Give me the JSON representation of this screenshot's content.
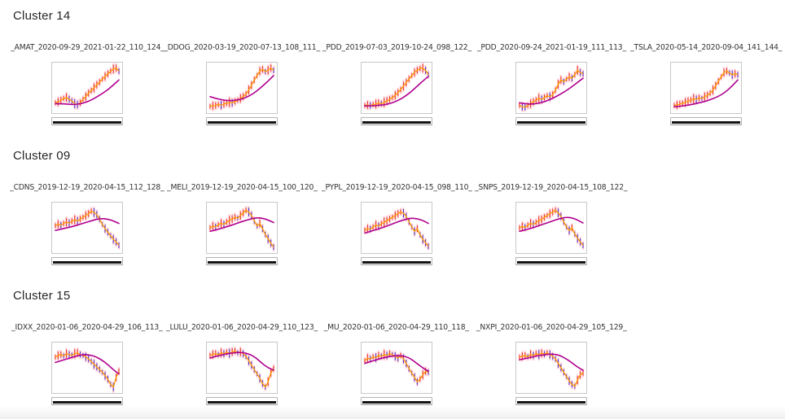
{
  "page": {
    "background": "#ffffff",
    "footer_band_color": "#f1f1f2"
  },
  "colors": {
    "chart_border": "#c8c8c8",
    "fast_line_orange": "#ff9c00",
    "slow_line_magenta": "#b0008f",
    "candle_up_red": "#e5352b",
    "candle_down_indigo": "#4f35cf",
    "candle_glow_pink": "#ff9fae",
    "slider_fill_black": "#141414",
    "slider_border": "#b5b5b5",
    "heading_text": "#262626",
    "label_text": "#333333"
  },
  "sections": [
    {
      "title": "Cluster 14",
      "charts": [
        {
          "label": "_AMAT_2020-09-29_2021-01-22_110_124_",
          "closes": [
            16,
            18,
            22,
            26,
            28,
            24,
            20,
            14,
            12,
            16,
            24,
            30,
            38,
            44,
            50,
            57,
            63,
            70,
            76,
            82,
            88,
            93,
            95,
            88
          ],
          "ma": [
            14,
            14,
            13,
            12,
            13,
            16,
            21,
            28,
            36,
            45,
            56,
            68
          ]
        },
        {
          "label": "_DDOG_2020-03-19_2020-07-13_108_111_",
          "closes": [
            8,
            9,
            10,
            12,
            11,
            13,
            15,
            17,
            16,
            19,
            22,
            26,
            30,
            36,
            45,
            56,
            68,
            78,
            88,
            92,
            87,
            90,
            95,
            90
          ],
          "ma": [
            30,
            26,
            23,
            21,
            21,
            23,
            27,
            33,
            42,
            53,
            65,
            78
          ]
        },
        {
          "label": "_PDD_2019-07-03_2019-10-24_098_122_",
          "closes": [
            10,
            11,
            10,
            12,
            13,
            15,
            14,
            17,
            20,
            24,
            28,
            33,
            39,
            46,
            54,
            62,
            70,
            78,
            85,
            90,
            94,
            95,
            90,
            80
          ],
          "ma": [
            9,
            9,
            10,
            11,
            13,
            17,
            23,
            31,
            41,
            53,
            65,
            76
          ]
        },
        {
          "label": "_PDD_2020-09-24_2021-01-19_111_113_",
          "closes": [
            10,
            7,
            6,
            10,
            14,
            18,
            22,
            26,
            24,
            28,
            32,
            30,
            34,
            45,
            58,
            68,
            64,
            70,
            75,
            72,
            80,
            90,
            85,
            82
          ],
          "ma": [
            16,
            14,
            13,
            14,
            17,
            22,
            28,
            35,
            43,
            52,
            62,
            72
          ]
        },
        {
          "label": "_TSLA_2020-05-14_2020-09-04_141_144_",
          "closes": [
            10,
            11,
            13,
            15,
            17,
            20,
            22,
            25,
            24,
            27,
            26,
            30,
            33,
            38,
            45,
            55,
            65,
            75,
            85,
            88,
            84,
            80,
            82,
            80
          ],
          "ma": [
            7,
            8,
            10,
            12,
            15,
            18,
            22,
            27,
            33,
            42,
            54,
            68
          ]
        }
      ]
    },
    {
      "title": "Cluster 09",
      "charts": [
        {
          "label": "_CDNS_2019-12-19_2020-04-15_112_128_",
          "closes": [
            55,
            58,
            56,
            60,
            63,
            61,
            65,
            68,
            66,
            70,
            74,
            78,
            82,
            88,
            85,
            80,
            70,
            58,
            48,
            40,
            32,
            24,
            18,
            10
          ],
          "ma": [
            44,
            47,
            50,
            53,
            57,
            61,
            65,
            69,
            71,
            70,
            66,
            60
          ]
        },
        {
          "label": "_MELI_2019-12-19_2020-04-15_100_120_",
          "closes": [
            50,
            54,
            52,
            57,
            60,
            58,
            63,
            67,
            70,
            74,
            72,
            78,
            84,
            90,
            86,
            78,
            66,
            54,
            60,
            48,
            35,
            25,
            15,
            6
          ],
          "ma": [
            42,
            45,
            49,
            53,
            57,
            62,
            66,
            70,
            73,
            72,
            68,
            62
          ]
        },
        {
          "label": "_PYPL_2019-12-19_2020-04-15_098_110_",
          "closes": [
            45,
            48,
            47,
            52,
            56,
            54,
            59,
            63,
            66,
            70,
            74,
            78,
            82,
            86,
            83,
            76,
            64,
            52,
            42,
            48,
            34,
            24,
            16,
            8
          ],
          "ma": [
            38,
            42,
            46,
            50,
            55,
            60,
            65,
            69,
            72,
            71,
            67,
            60
          ]
        },
        {
          "label": "_SNPS_2019-12-19_2020-04-15_108_122_",
          "closes": [
            50,
            53,
            51,
            56,
            60,
            58,
            62,
            66,
            69,
            74,
            78,
            82,
            86,
            90,
            84,
            76,
            64,
            52,
            44,
            50,
            36,
            26,
            18,
            10
          ],
          "ma": [
            42,
            45,
            49,
            53,
            58,
            62,
            67,
            71,
            74,
            73,
            68,
            61
          ]
        }
      ]
    },
    {
      "title": "Cluster 15",
      "charts": [
        {
          "label": "_IDXX_2020-01-06_2020-04-29_106_113_",
          "closes": [
            74,
            78,
            80,
            77,
            82,
            80,
            78,
            82,
            84,
            80,
            78,
            75,
            70,
            64,
            58,
            52,
            46,
            40,
            32,
            24,
            12,
            6,
            28,
            42
          ],
          "ma": [
            62,
            66,
            70,
            74,
            78,
            80,
            79,
            75,
            68,
            58,
            46,
            36
          ]
        },
        {
          "label": "_LULU_2020-01-06_2020-04-29_110_123_",
          "closes": [
            78,
            80,
            82,
            80,
            84,
            82,
            85,
            83,
            86,
            88,
            84,
            86,
            82,
            76,
            66,
            56,
            46,
            36,
            26,
            14,
            6,
            18,
            38,
            48
          ],
          "ma": [
            72,
            76,
            79,
            82,
            84,
            85,
            84,
            80,
            72,
            60,
            50,
            45
          ]
        },
        {
          "label": "_MU_2020-01-06_2020-04-29_110_118_",
          "closes": [
            66,
            72,
            70,
            75,
            73,
            78,
            76,
            80,
            78,
            82,
            80,
            76,
            72,
            78,
            70,
            60,
            48,
            38,
            28,
            18,
            24,
            34,
            42,
            40
          ],
          "ma": [
            60,
            64,
            68,
            72,
            75,
            77,
            78,
            76,
            70,
            60,
            50,
            42
          ]
        },
        {
          "label": "_NXPI_2020-01-06_2020-04-29_105_129_",
          "closes": [
            74,
            76,
            78,
            75,
            80,
            78,
            82,
            80,
            83,
            81,
            84,
            80,
            76,
            70,
            60,
            50,
            40,
            30,
            20,
            12,
            8,
            22,
            34,
            38
          ],
          "ma": [
            68,
            71,
            74,
            77,
            79,
            81,
            81,
            78,
            71,
            62,
            52,
            44
          ]
        }
      ]
    }
  ]
}
